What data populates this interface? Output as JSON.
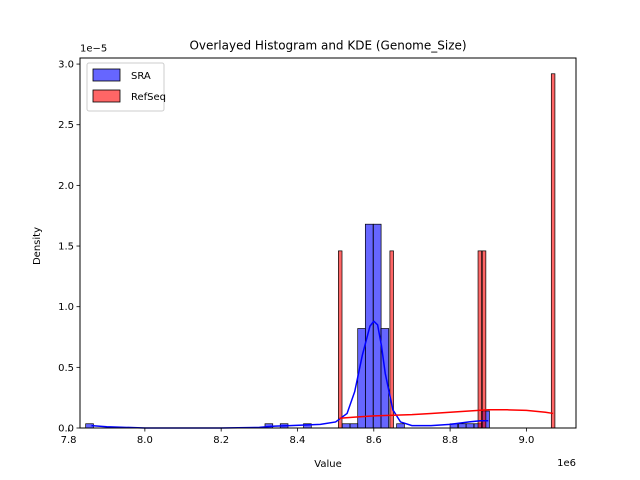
{
  "chart_data": {
    "type": "bar",
    "title": "Overlayed Histogram and KDE (Genome_Size)",
    "xlabel": "Value",
    "ylabel": "Density",
    "x_scale_label": "1e6",
    "y_scale_label": "1e−5",
    "xlim": [
      7.83,
      9.13
    ],
    "ylim": [
      0,
      3.05
    ],
    "x_ticks": [
      7.8,
      8.0,
      8.2,
      8.4,
      8.6,
      8.8,
      9.0
    ],
    "x_tick_labels": [
      "7.8",
      "8.0",
      "8.2",
      "8.4",
      "8.6",
      "8.8",
      "9.0"
    ],
    "y_ticks": [
      0,
      0.5,
      1.0,
      1.5,
      2.0,
      2.5,
      3.0
    ],
    "y_tick_labels": [
      "0.0",
      "0.5",
      "1.0",
      "1.5",
      "2.0",
      "2.5",
      "3.0"
    ],
    "legend": {
      "placement": "upper-left",
      "entries": [
        "SRA",
        "RefSeq"
      ]
    },
    "series": [
      {
        "name": "SRA",
        "color": "#0000ff",
        "bin_width": 0.0203,
        "bins": [
          {
            "x": 7.855,
            "density": 0.035
          },
          {
            "x": 8.325,
            "density": 0.035
          },
          {
            "x": 8.365,
            "density": 0.035
          },
          {
            "x": 8.426,
            "density": 0.035
          },
          {
            "x": 8.5275,
            "density": 0.035
          },
          {
            "x": 8.548,
            "density": 0.035
          },
          {
            "x": 8.568,
            "density": 0.82
          },
          {
            "x": 8.588,
            "density": 1.68
          },
          {
            "x": 8.609,
            "density": 1.68
          },
          {
            "x": 8.629,
            "density": 0.82
          },
          {
            "x": 8.67,
            "density": 0.035
          },
          {
            "x": 8.81,
            "density": 0.035
          },
          {
            "x": 8.832,
            "density": 0.035
          },
          {
            "x": 8.852,
            "density": 0.035
          },
          {
            "x": 8.873,
            "density": 0.035
          },
          {
            "x": 8.893,
            "density": 0.14
          }
        ],
        "kde": {
          "x": [
            7.86,
            7.9,
            8.0,
            8.1,
            8.2,
            8.3,
            8.34,
            8.38,
            8.42,
            8.46,
            8.5,
            8.53,
            8.55,
            8.57,
            8.59,
            8.6,
            8.61,
            8.62,
            8.63,
            8.65,
            8.67,
            8.7,
            8.75,
            8.8,
            8.85,
            8.88,
            8.9
          ],
          "y": [
            0.02,
            0.01,
            0.0,
            0.0,
            0.0,
            0.005,
            0.015,
            0.02,
            0.025,
            0.03,
            0.05,
            0.12,
            0.3,
            0.6,
            0.84,
            0.88,
            0.85,
            0.68,
            0.45,
            0.15,
            0.05,
            0.02,
            0.02,
            0.03,
            0.05,
            0.06,
            0.06
          ]
        }
      },
      {
        "name": "RefSeq",
        "color": "#ff0000",
        "bin_width": 0.0095,
        "bins": [
          {
            "x": 8.512,
            "density": 1.46
          },
          {
            "x": 8.647,
            "density": 1.46
          },
          {
            "x": 8.878,
            "density": 1.46
          },
          {
            "x": 8.889,
            "density": 1.46
          },
          {
            "x": 9.07,
            "density": 2.92
          }
        ],
        "kde": {
          "x": [
            8.51,
            8.55,
            8.6,
            8.65,
            8.7,
            8.75,
            8.8,
            8.85,
            8.9,
            8.95,
            9.0,
            9.05,
            9.07
          ],
          "y": [
            0.08,
            0.09,
            0.1,
            0.105,
            0.11,
            0.12,
            0.13,
            0.14,
            0.15,
            0.15,
            0.145,
            0.13,
            0.12
          ]
        }
      }
    ]
  }
}
